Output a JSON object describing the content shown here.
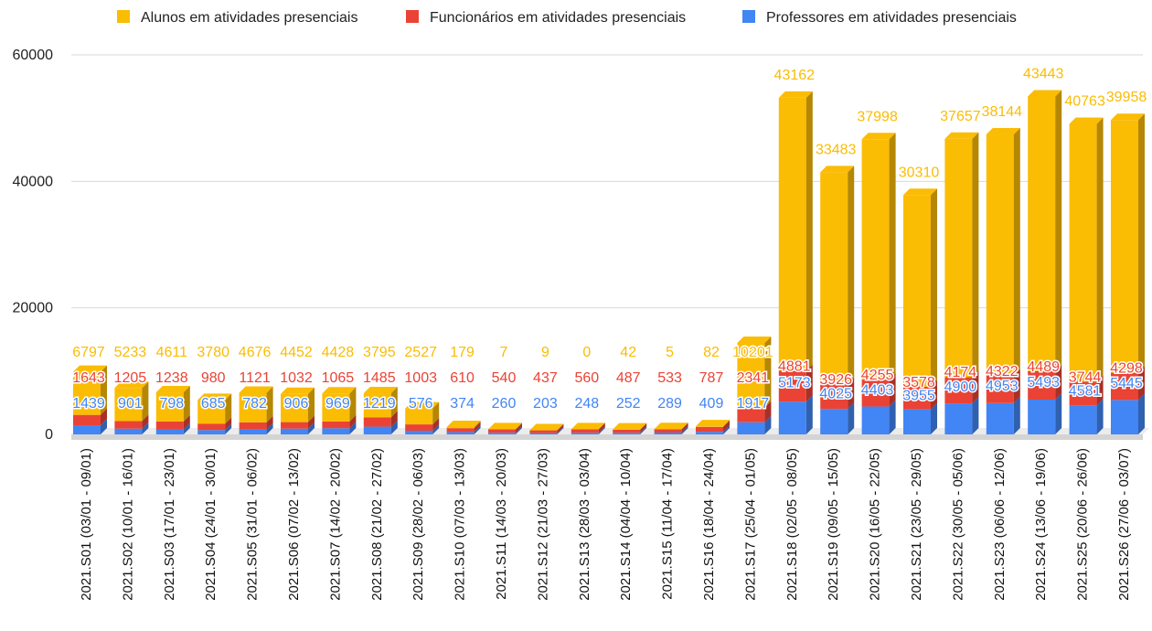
{
  "chart_data": {
    "type": "bar",
    "stacked": true,
    "style": "3d",
    "categories": [
      "2021.S01 (03/01 - 09/01)",
      "2021.S02 (10/01 - 16/01)",
      "2021.S03 (17/01 - 23/01)",
      "2021.S04 (24/01 - 30/01)",
      "2021.S05 (31/01 - 06/02)",
      "2021.S06 (07/02 - 13/02)",
      "2021.S07 (14/02 - 20/02)",
      "2021.S08 (21/02 - 27/02)",
      "2021.S09 (28/02 - 06/03)",
      "2021.S10 (07/03 - 13/03)",
      "2021.S11 (14/03 - 20/03)",
      "2021.S12 (21/03 - 27/03)",
      "2021.S13 (28/03 - 03/04)",
      "2021.S14 (04/04 - 10/04)",
      "2021.S15 (11/04 - 17/04)",
      "2021.S16 (18/04 - 24/04)",
      "2021.S17 (25/04 - 01/05)",
      "2021.S18 (02/05 - 08/05)",
      "2021.S19 (09/05 - 15/05)",
      "2021.S20 (16/05 - 22/05)",
      "2021.S21 (23/05 - 29/05)",
      "2021.S22 (30/05 - 05/06)",
      "2021.S23 (06/06 - 12/06)",
      "2021.S24 (13/06 - 19/06)",
      "2021.S25 (20/06 - 26/06)",
      "2021.S26 (27/06 - 03/07)"
    ],
    "series": [
      {
        "name": "Professores em atividades presenciais",
        "color": "#4285f4",
        "values": [
          1439,
          901,
          798,
          685,
          782,
          906,
          969,
          1219,
          576,
          374,
          260,
          203,
          248,
          252,
          289,
          409,
          1917,
          5173,
          4025,
          4403,
          3955,
          4900,
          4953,
          5493,
          4581,
          5445
        ]
      },
      {
        "name": "Funcionários em atividades presenciais",
        "color": "#ea4335",
        "values": [
          1643,
          1205,
          1238,
          980,
          1121,
          1032,
          1065,
          1485,
          1003,
          610,
          540,
          437,
          560,
          487,
          533,
          787,
          2341,
          4881,
          3926,
          4255,
          3578,
          4174,
          4322,
          4489,
          3744,
          4298
        ]
      },
      {
        "name": "Alunos em atividades presenciais",
        "color": "#fbbc04",
        "values": [
          6797,
          5233,
          4611,
          3780,
          4676,
          4452,
          4428,
          3795,
          2527,
          179,
          7,
          9,
          0,
          42,
          5,
          82,
          10201,
          43162,
          33483,
          37998,
          30310,
          37657,
          38144,
          43443,
          40763,
          39958
        ]
      }
    ],
    "legend": {
      "placement": "top",
      "order": [
        "Alunos em atividades presenciais",
        "Funcionários em atividades presenciais",
        "Professores em atividades presenciais"
      ]
    },
    "yticks": [
      "0",
      "20000",
      "40000",
      "60000"
    ],
    "ylim": [
      0,
      60000
    ],
    "grid": true,
    "title": "",
    "xlabel": "",
    "ylabel": ""
  }
}
